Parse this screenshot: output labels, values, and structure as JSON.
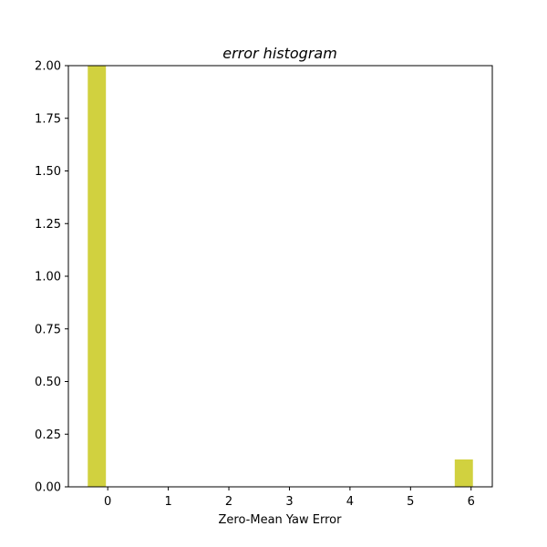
{
  "chart_data": {
    "type": "bar",
    "title": "error histogram",
    "xlabel": "Zero-Mean Yaw Error",
    "ylabel": "",
    "xlim": [
      -0.65,
      6.35
    ],
    "ylim": [
      0,
      2.0
    ],
    "xticks": [
      0,
      1,
      2,
      3,
      4,
      5,
      6
    ],
    "yticks": [
      0.0,
      0.25,
      0.5,
      0.75,
      1.0,
      1.25,
      1.5,
      1.75,
      2.0
    ],
    "bin_width": 0.3,
    "bars": [
      {
        "x0": -0.33,
        "x1": -0.03,
        "value": 2.0
      },
      {
        "x0": 5.73,
        "x1": 6.03,
        "value": 0.13
      }
    ],
    "bar_color": "#d1d13f",
    "grid": false
  }
}
